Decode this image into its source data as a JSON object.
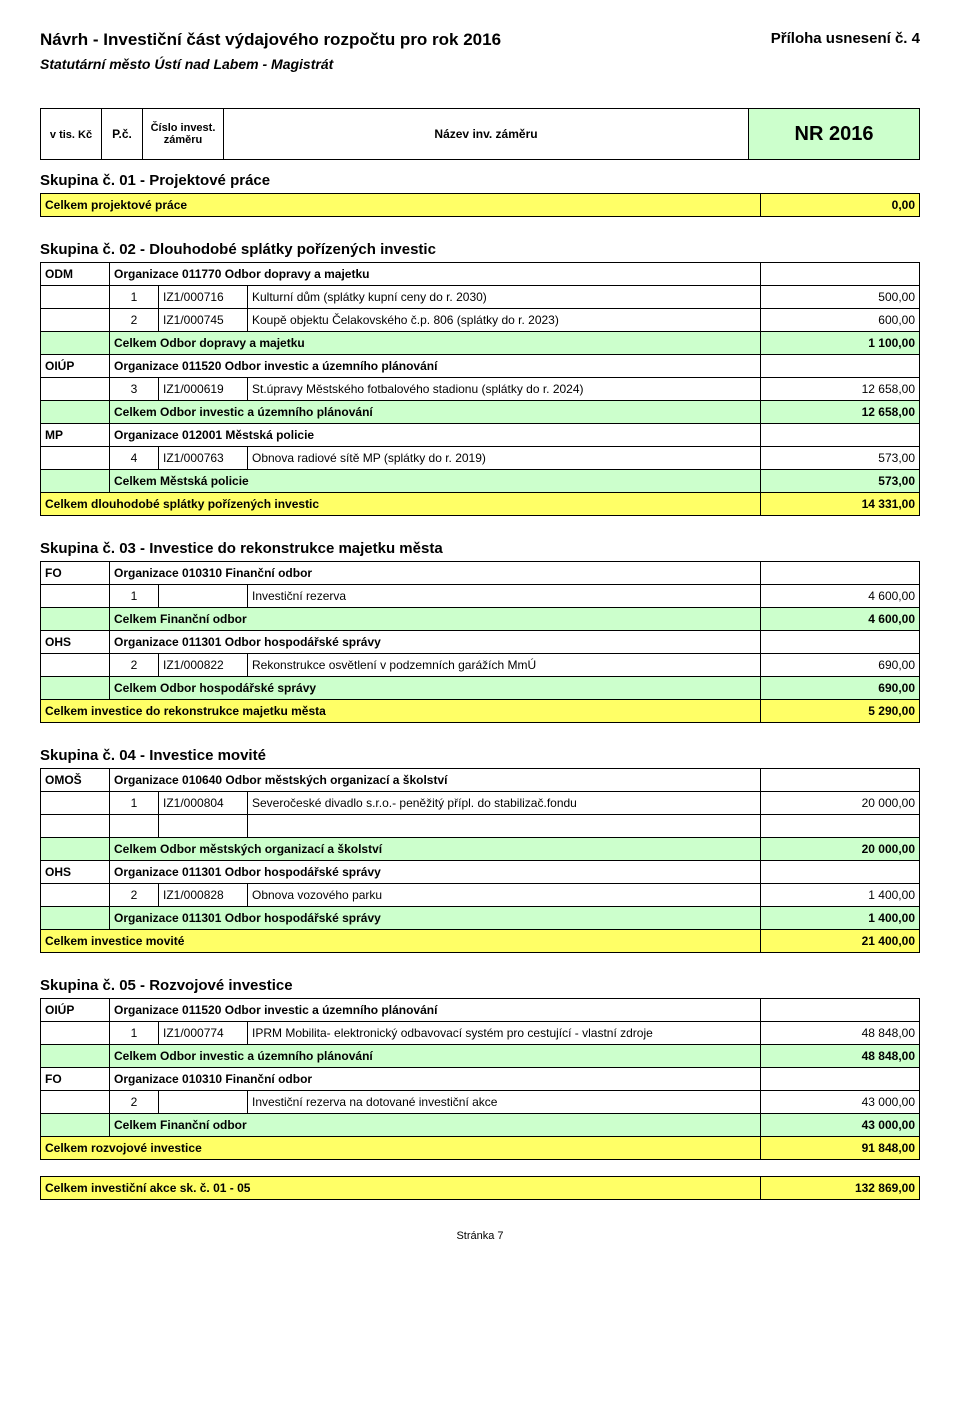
{
  "header": {
    "titleLeft": "Návrh - Investiční část výdajového rozpočtu pro rok 2016",
    "titleRight": "Příloha usnesení č. 4",
    "subtitle": "Statutární město Ústí nad Labem - Magistrát",
    "unit": "v tis. Kč",
    "pc": "P.č.",
    "cislo": "Číslo invest. záměru",
    "nazev": "Název inv. záměru",
    "nr": "NR 2016"
  },
  "g1": {
    "title": "Skupina č. 01 - Projektové práce",
    "sumLabel": "Celkem projektové práce",
    "sumVal": "0,00"
  },
  "g2": {
    "title": "Skupina č. 02 - Dlouhodobé splátky pořízených investic",
    "odm": {
      "abbr": "ODM",
      "org": "Organizace 011770 Odbor dopravy a majetku"
    },
    "r1": {
      "n": "1",
      "code": "IZ1/000716",
      "name": "Kulturní dům (splátky kupní ceny do r. 2030)",
      "val": "500,00"
    },
    "r2": {
      "n": "2",
      "code": "IZ1/000745",
      "name": "Koupě objektu Čelakovského č.p. 806 (splátky do r. 2023)",
      "val": "600,00"
    },
    "s1": {
      "label": "Celkem  Odbor dopravy a majetku",
      "val": "1 100,00"
    },
    "oiup": {
      "abbr": "OIÚP",
      "org": "Organizace 011520  Odbor investic a územního plánování"
    },
    "r3": {
      "n": "3",
      "code": "IZ1/000619",
      "name": "St.úpravy Městského fotbalového stadionu (splátky do r. 2024)",
      "val": "12 658,00"
    },
    "s2": {
      "label": "Celkem Odbor investic a územního plánování",
      "val": "12 658,00"
    },
    "mp": {
      "abbr": "MP",
      "org": "Organizace 012001 Městská policie"
    },
    "r4": {
      "n": "4",
      "code": "IZ1/000763",
      "name": "Obnova radiové sítě MP (splátky do r. 2019)",
      "val": "573,00"
    },
    "s3": {
      "label": "Celkem  Městská policie",
      "val": "573,00"
    },
    "total": {
      "label": "Celkem dlouhodobé splátky pořízených investic",
      "val": "14 331,00"
    }
  },
  "g3": {
    "title": "Skupina č. 03 - Investice do rekonstrukce majetku města",
    "fo": {
      "abbr": "FO",
      "org": "Organizace  010310  Finanční odbor"
    },
    "r1": {
      "n": "1",
      "code": "",
      "name": "Investiční rezerva",
      "val": "4 600,00"
    },
    "s1": {
      "label": "Celkem Finanční odbor",
      "val": "4 600,00"
    },
    "ohs": {
      "abbr": "OHS",
      "org": "Organizace 011301 Odbor hospodářské správy"
    },
    "r2": {
      "n": "2",
      "code": "IZ1/000822",
      "name": "Rekonstrukce osvětlení v podzemních garážích MmÚ",
      "val": "690,00"
    },
    "s2": {
      "label": "Celkem Odbor hospodářské správy",
      "val": "690,00"
    },
    "total": {
      "label": "Celkem investice do rekonstrukce majetku města",
      "val": "5 290,00"
    }
  },
  "g4": {
    "title": "Skupina č. 04 - Investice movité",
    "omos": {
      "abbr": "OMOŠ",
      "org": "Organizace 010640 Odbor městských organizací a školství"
    },
    "r1": {
      "n": "1",
      "code": "IZ1/000804",
      "name": "Severočeské divadlo s.r.o.- peněžitý přípl. do stabilizač.fondu",
      "val": "20 000,00"
    },
    "s1": {
      "label": "Celkem  Odbor městských organizací a školství",
      "val": "20 000,00"
    },
    "ohs": {
      "abbr": "OHS",
      "org": "Organizace 011301 Odbor hospodářské správy"
    },
    "r2": {
      "n": "2",
      "code": "IZ1/000828",
      "name": "Obnova vozového parku",
      "val": "1 400,00"
    },
    "s2": {
      "label": "Organizace 011301 Odbor hospodářské správy",
      "val": "1 400,00"
    },
    "total": {
      "label": "Celkem investice movité",
      "val": "21 400,00"
    }
  },
  "g5": {
    "title": "Skupina č. 05 - Rozvojové investice",
    "oiup": {
      "abbr": "OIÚP",
      "org": "Organizace 011520  Odbor investic a územního plánování"
    },
    "r1": {
      "n": "1",
      "code": "IZ1/000774",
      "name": "IPRM Mobilita- elektronický odbavovací systém pro cestující - vlastní zdroje",
      "val": "48 848,00"
    },
    "s1": {
      "label": "Celkem Odbor investic a územního plánování",
      "val": "48 848,00"
    },
    "fo": {
      "abbr": "FO",
      "org": "Organizace 010310  Finanční odbor"
    },
    "r2": {
      "n": "2",
      "code": "",
      "name": "Investiční rezerva na dotované investiční akce",
      "val": "43 000,00"
    },
    "s2": {
      "label": "Celkem Finanční odbor",
      "val": "43 000,00"
    },
    "total": {
      "label": "Celkem rozvojové investice",
      "val": "91 848,00"
    }
  },
  "grand": {
    "label": "Celkem investiční akce sk. č. 01 - 05",
    "val": "132 869,00"
  },
  "footer": "Stránka 7"
}
